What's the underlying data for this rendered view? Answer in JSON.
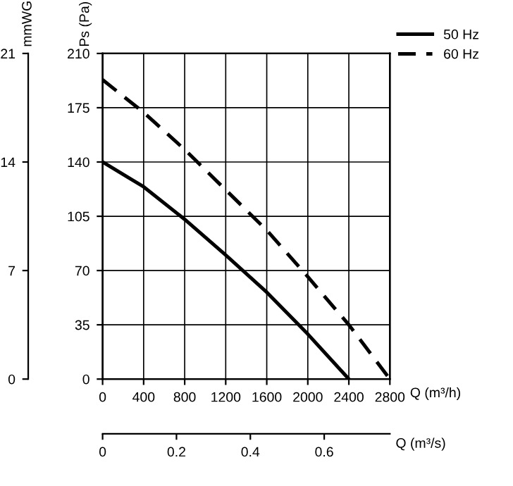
{
  "chart_data": {
    "type": "line",
    "xlabel": "Q (m³/h)",
    "x2label": "Q (m³/s)",
    "ylabel": "Ps (Pa)",
    "y3label": "mmWG",
    "xlim": [
      0,
      2800
    ],
    "xticks": [
      0,
      400,
      800,
      1200,
      1600,
      2000,
      2400,
      2800
    ],
    "x2lim": [
      0,
      0.7778
    ],
    "x2ticks": [
      0,
      0.2,
      0.4,
      0.6
    ],
    "ylim": [
      0,
      210
    ],
    "yticks": [
      0,
      35,
      70,
      105,
      140,
      175,
      210
    ],
    "y3lim": [
      0,
      21
    ],
    "y3ticks": [
      0,
      7,
      14,
      21
    ],
    "grid": true,
    "legend": "top right",
    "series": [
      {
        "name": "50 Hz",
        "color": "#000000",
        "line_style": "solid",
        "x": [
          0,
          400,
          800,
          1200,
          1600,
          2000,
          2400
        ],
        "values": [
          140,
          124,
          103,
          80,
          56,
          29,
          0
        ]
      },
      {
        "name": "60 Hz",
        "color": "#000000",
        "line_style": "dashed",
        "x": [
          0,
          400,
          800,
          1200,
          1600,
          2000,
          2400,
          2800
        ],
        "values": [
          193,
          172,
          148,
          122,
          96,
          66,
          35,
          0
        ]
      }
    ]
  }
}
